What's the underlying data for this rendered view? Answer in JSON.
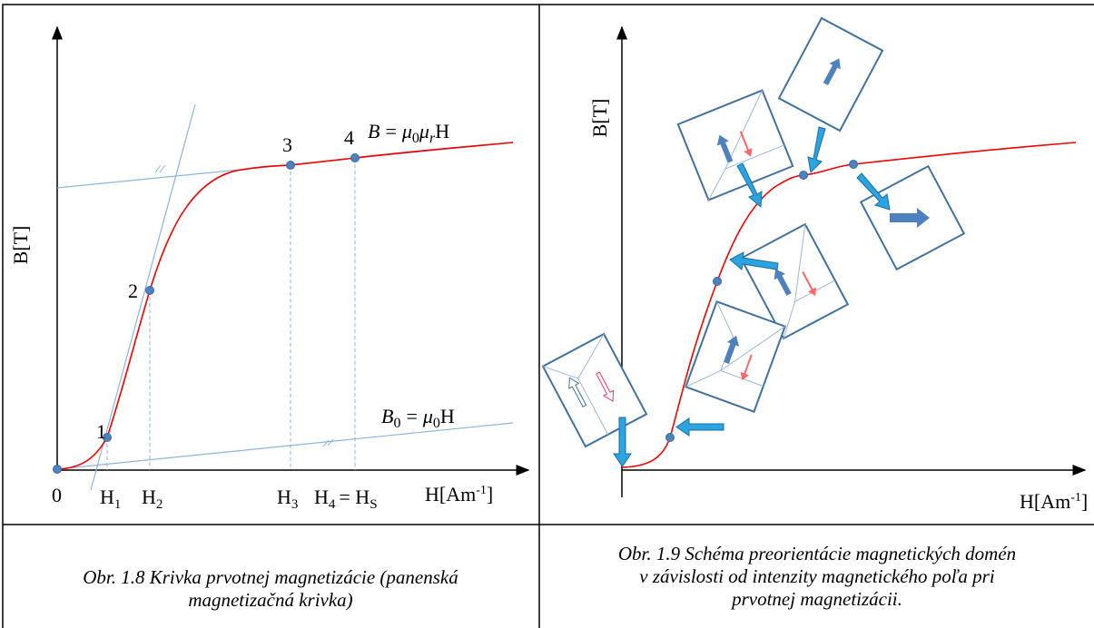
{
  "left_figure": {
    "y_label": "B[T]",
    "origin": "0",
    "points": [
      "1",
      "2",
      "3",
      "4"
    ],
    "x_labels": {
      "h1": {
        "base": "H",
        "sub": "1"
      },
      "h2": {
        "base": "H",
        "sub": "2"
      },
      "h3": {
        "base": "H",
        "sub": "3"
      },
      "h4": {
        "base": "H",
        "sub": "4",
        "eq": "= H",
        "sub2": "S"
      },
      "axis": {
        "main": "H[Am",
        "sup": "-1",
        "end": "]"
      }
    },
    "eq_upper": {
      "b": "B",
      "eq": "=",
      "mu1": "μ",
      "s1": "0",
      "mu2": "μ",
      "s2": "r",
      "h": "H"
    },
    "eq_lower": {
      "b": "B",
      "s0": "0",
      "eq": "=",
      "mu": "μ",
      "s1": "0",
      "h": "H"
    }
  },
  "right_figure": {
    "y_label": "B[T]",
    "x_label": {
      "main": "H[Am",
      "sup": "-1",
      "end": "]"
    }
  },
  "captions": {
    "left": [
      "Obr. 1.8 Krivka prvotnej magnetizácie (panenská",
      "magnetizačná krivka)"
    ],
    "right": [
      "Obr. 1.9 Schéma preorientácie magnetických domén",
      "v závislosti od intenzity magnetického poľa pri",
      "prvotnej magnetizácii."
    ]
  }
}
